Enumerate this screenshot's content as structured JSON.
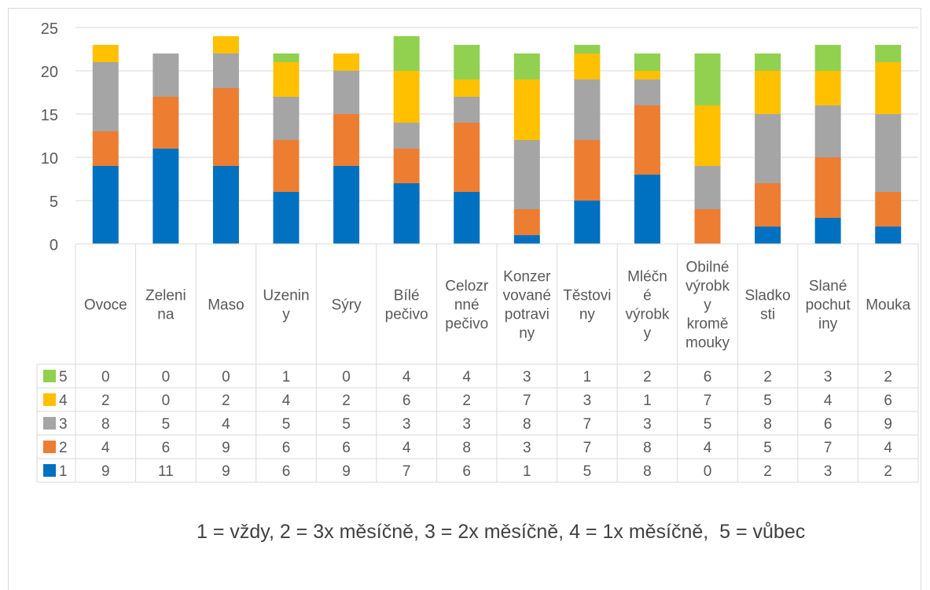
{
  "chart_data": {
    "type": "bar",
    "stacked": true,
    "categories": [
      [
        "Ovoce"
      ],
      [
        "Zeleni",
        "na"
      ],
      [
        "Maso"
      ],
      [
        "Uzenin",
        "y"
      ],
      [
        "Sýry"
      ],
      [
        "Bílé",
        "pečivo"
      ],
      [
        "Celozr",
        "nné",
        "pečivo"
      ],
      [
        "Konzer",
        "vované",
        "potravi",
        "ny"
      ],
      [
        "Těstovi",
        "ny"
      ],
      [
        "Mléčn",
        "é",
        "výrobk",
        "y"
      ],
      [
        "Obilné",
        "výrobk",
        "y",
        "kromě",
        "mouky"
      ],
      [
        "Sladko",
        "sti"
      ],
      [
        "Slané",
        "pochut",
        "iny"
      ],
      [
        "Mouka"
      ]
    ],
    "series": [
      {
        "name": "1",
        "color": "#0070c0",
        "values": [
          9,
          11,
          9,
          6,
          9,
          7,
          6,
          1,
          5,
          8,
          0,
          2,
          3,
          2
        ]
      },
      {
        "name": "2",
        "color": "#ed7d31",
        "values": [
          4,
          6,
          9,
          6,
          6,
          4,
          8,
          3,
          7,
          8,
          4,
          5,
          7,
          4
        ]
      },
      {
        "name": "3",
        "color": "#a5a5a5",
        "values": [
          8,
          5,
          4,
          5,
          5,
          3,
          3,
          8,
          7,
          3,
          5,
          8,
          6,
          9
        ]
      },
      {
        "name": "4",
        "color": "#ffc000",
        "values": [
          2,
          0,
          2,
          4,
          2,
          6,
          2,
          7,
          3,
          1,
          7,
          5,
          4,
          6
        ]
      },
      {
        "name": "5",
        "color": "#92d050",
        "values": [
          0,
          0,
          0,
          1,
          0,
          4,
          4,
          3,
          1,
          2,
          6,
          2,
          3,
          2
        ]
      }
    ],
    "ylim": [
      0,
      25
    ],
    "yticks": [
      0,
      5,
      10,
      15,
      20,
      25
    ],
    "grid": true,
    "legend": "data-table",
    "data_table": true,
    "note": "1 = vždy, 2 = 3x měsíčně, 3 = 2x měsíčně, 4 = 1x měsíčně,  5 = vůbec"
  }
}
